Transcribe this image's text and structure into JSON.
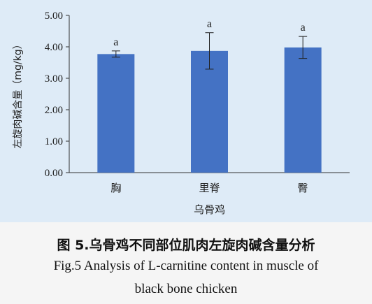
{
  "chart_data": {
    "type": "bar",
    "categories": [
      "胸",
      "里脊",
      "臀"
    ],
    "values": [
      3.77,
      3.87,
      3.98
    ],
    "error_bars": [
      0.1,
      0.58,
      0.35
    ],
    "significance_labels": [
      "a",
      "a",
      "a"
    ],
    "xlabel": "乌骨鸡",
    "ylabel": "左旋肉碱含量（mg/kg）",
    "ylim": [
      0,
      5
    ],
    "yticks": [
      "0.00",
      "1.00",
      "2.00",
      "3.00",
      "4.00",
      "5.00"
    ],
    "bar_color": "#4472c4",
    "grid": false
  },
  "caption": {
    "chinese": "图 5.乌骨鸡不同部位肌肉左旋肉碱含量分析",
    "english_line1": "Fig.5 Analysis of L-carnitine content in muscle of",
    "english_line2": "black bone chicken"
  },
  "colors": {
    "chart_background": "#deebf7",
    "page_background": "#f5f5f5"
  }
}
